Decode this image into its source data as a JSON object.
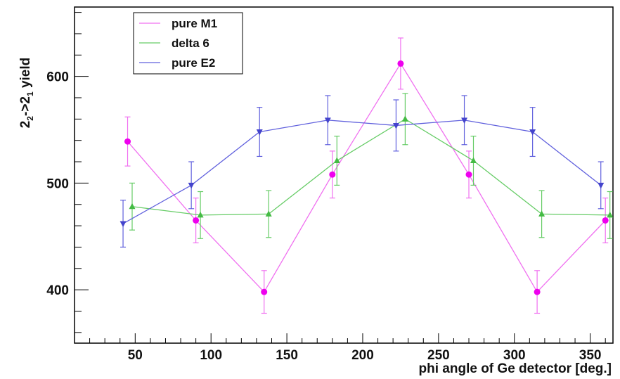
{
  "chart_data": {
    "type": "scatter",
    "xlabel": "phi angle of Ge detector [deg.]",
    "ylabel": {
      "base": "2",
      "sub1": "2",
      "mid": "->2",
      "sub2": "1",
      "tail": " yield"
    },
    "xlim": [
      10,
      365
    ],
    "ylim": [
      350,
      665
    ],
    "x_ticks": [
      50,
      100,
      150,
      200,
      250,
      300,
      350
    ],
    "y_ticks": [
      400,
      500,
      600
    ],
    "grid": false,
    "legend_position": "top-left",
    "series": [
      {
        "name": "pure M1",
        "color": "#f070f0",
        "marker_color": "#ee00ee",
        "marker": "circle",
        "x": [
          45,
          90,
          135,
          180,
          225,
          270,
          315,
          360
        ],
        "y": [
          539,
          465,
          398,
          508,
          612,
          508,
          398,
          465
        ],
        "err": [
          23,
          21,
          20,
          22,
          24,
          22,
          20,
          21
        ]
      },
      {
        "name": "delta 6",
        "color": "#66cc66",
        "marker_color": "#44bb44",
        "marker": "triangle-up",
        "x": [
          48,
          93,
          138,
          183,
          228,
          273,
          318,
          363
        ],
        "y": [
          478,
          470,
          471,
          521,
          560,
          521,
          471,
          470
        ],
        "err": [
          22,
          22,
          22,
          23,
          24,
          23,
          22,
          22
        ]
      },
      {
        "name": "pure E2",
        "color": "#6060dd",
        "marker_color": "#4444cc",
        "marker": "triangle-down",
        "x": [
          42,
          87,
          132,
          177,
          222,
          267,
          312,
          357
        ],
        "y": [
          462,
          498,
          548,
          559,
          554,
          559,
          548,
          498
        ],
        "err": [
          22,
          22,
          23,
          23,
          24,
          23,
          23,
          22
        ]
      }
    ]
  }
}
